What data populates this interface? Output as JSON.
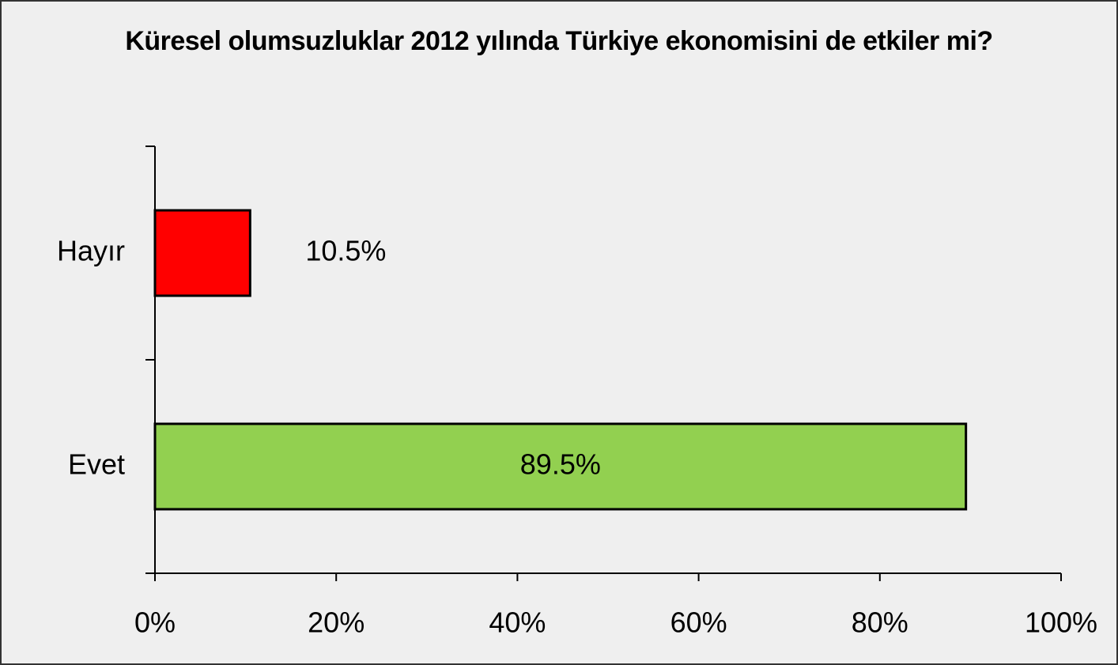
{
  "chart_data": {
    "type": "hbar",
    "title": "Küresel olumsuzluklar 2012 yılında Türkiye ekonomisini de etkiler mi?",
    "categories": [
      "Hayır",
      "Evet"
    ],
    "values": [
      10.5,
      89.5
    ],
    "value_labels": [
      "10.5%",
      "89.5%"
    ],
    "colors": [
      "#ff0000",
      "#92d050"
    ],
    "xlim": [
      0,
      100
    ],
    "xticks": [
      {
        "value": 0,
        "label": "0%"
      },
      {
        "value": 20,
        "label": "20%"
      },
      {
        "value": 40,
        "label": "40%"
      },
      {
        "value": 60,
        "label": "60%"
      },
      {
        "value": 80,
        "label": "80%"
      },
      {
        "value": 100,
        "label": "100%"
      }
    ],
    "grid": false
  }
}
